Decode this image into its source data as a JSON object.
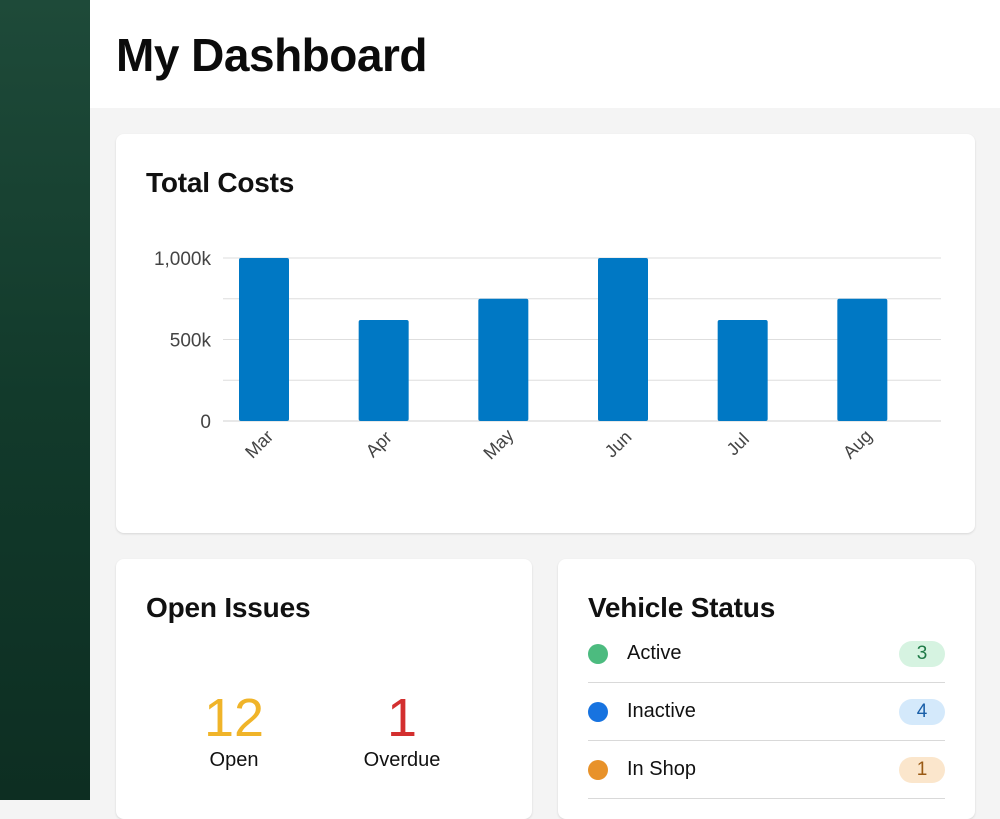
{
  "page": {
    "title": "My Dashboard"
  },
  "costs": {
    "title": "Total Costs",
    "chart_data": {
      "type": "bar",
      "categories": [
        "Mar",
        "Apr",
        "May",
        "Jun",
        "Jul",
        "Aug"
      ],
      "values": [
        1000,
        620,
        750,
        1000,
        620,
        750
      ],
      "ylim": [
        0,
        1000
      ],
      "yticks": [
        {
          "value": 0,
          "label": "0"
        },
        {
          "value": 500,
          "label": "500k"
        },
        {
          "value": 1000,
          "label": "1,000k"
        }
      ],
      "grid_lines": [
        250,
        500,
        750,
        1000
      ],
      "bar_color": "#0078c4"
    }
  },
  "issues": {
    "title": "Open Issues",
    "open": {
      "value": "12",
      "label": "Open",
      "color": "#f0b429"
    },
    "overdue": {
      "value": "1",
      "label": "Overdue",
      "color": "#d32f2f"
    }
  },
  "vehicles": {
    "title": "Vehicle Status",
    "items": [
      {
        "label": "Active",
        "count": "3",
        "dot_color": "#4cbb7f",
        "badge_bg": "#d6f3e1",
        "badge_fg": "#1e7a47"
      },
      {
        "label": "Inactive",
        "count": "4",
        "dot_color": "#1773e0",
        "badge_bg": "#d4e9fb",
        "badge_fg": "#1a5fa8"
      },
      {
        "label": "In Shop",
        "count": "1",
        "dot_color": "#e8922a",
        "badge_bg": "#fbe6cc",
        "badge_fg": "#9a5a14"
      }
    ]
  }
}
